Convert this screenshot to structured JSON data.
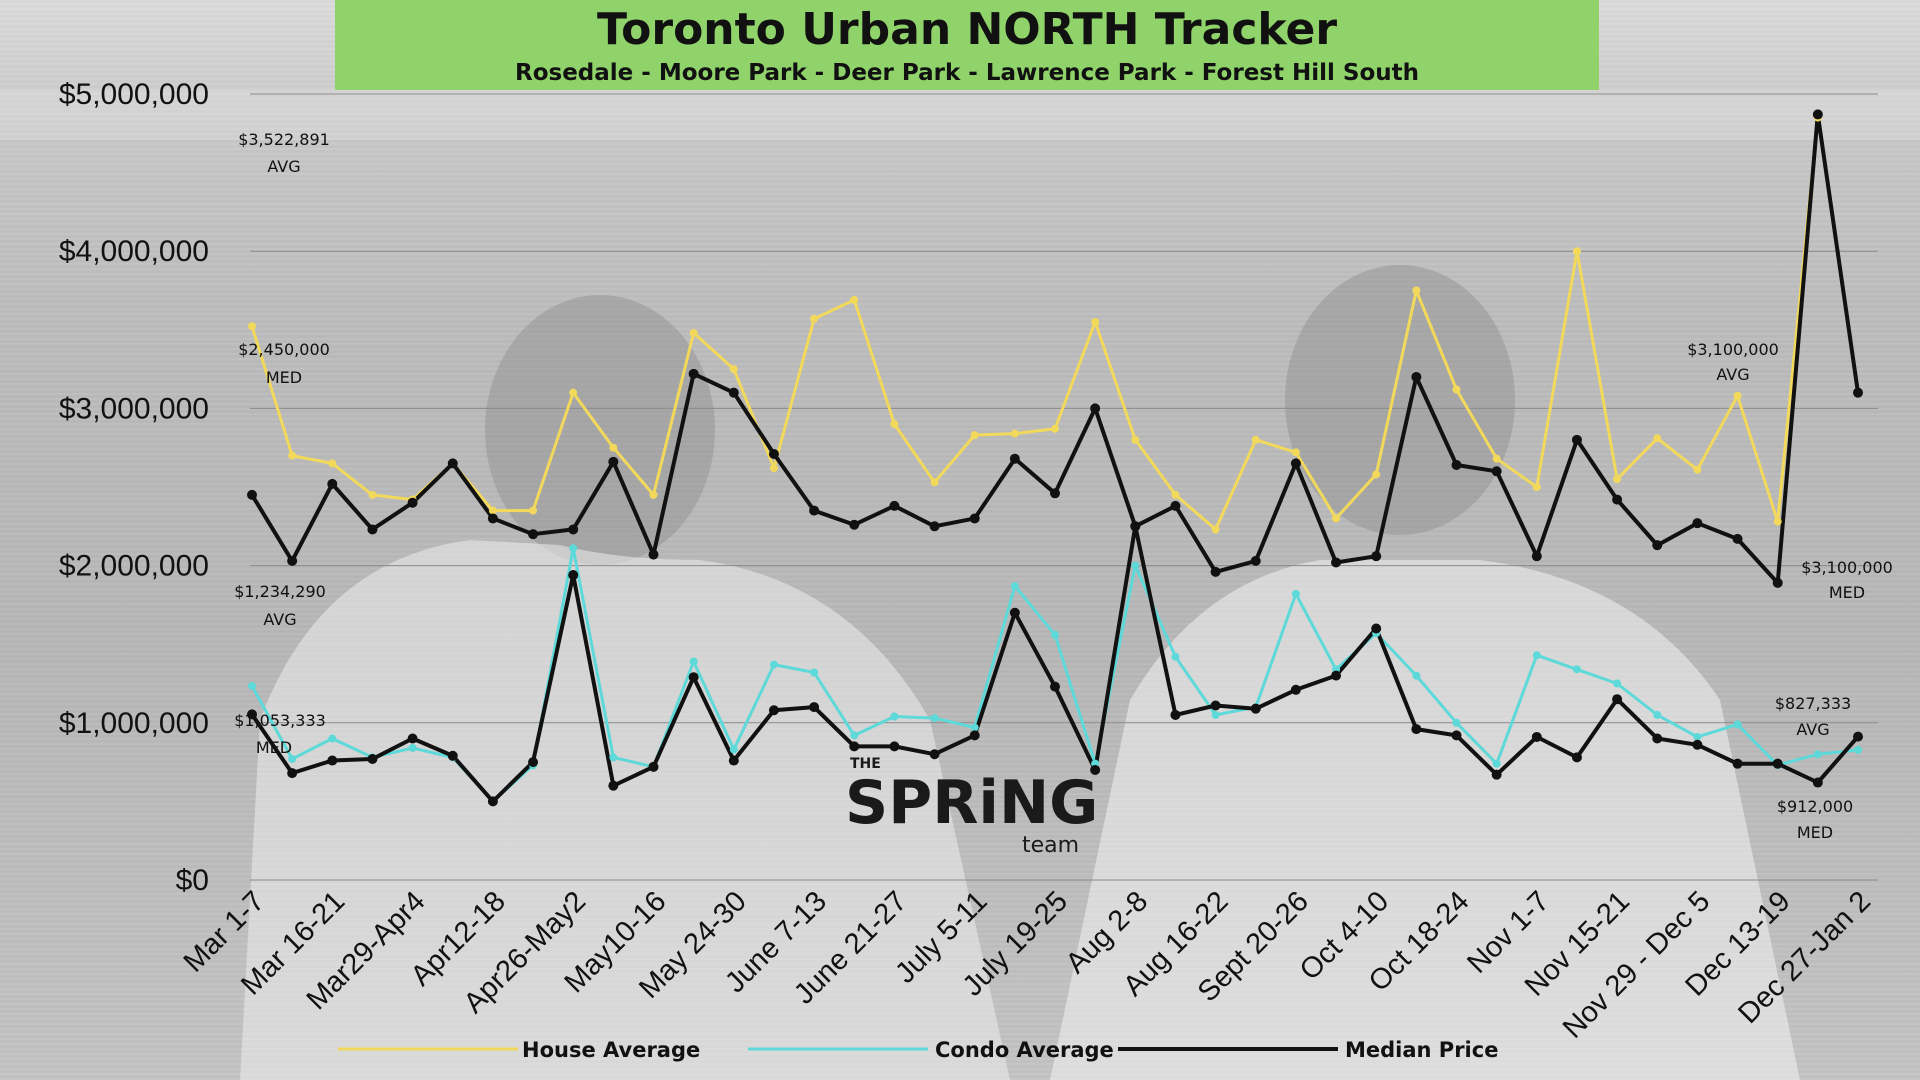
{
  "header": {
    "title": "Toronto Urban NORTH Tracker",
    "subtitle": "Rosedale - Moore Park - Deer Park - Lawrence Park - Forest Hill South"
  },
  "logo": {
    "top": "THE",
    "main": "SPRiNG",
    "bottom": "team"
  },
  "colors": {
    "title_bg": "#8fd36a",
    "house": "#f2d95c",
    "condo": "#5ed9d9",
    "median": "#111111"
  },
  "annotations": [
    {
      "id": "ann-house-first",
      "lines": [
        "$3,522,891",
        "AVG"
      ]
    },
    {
      "id": "ann-median-first",
      "lines": [
        "$2,450,000",
        "MED"
      ]
    },
    {
      "id": "ann-condo-first",
      "lines": [
        "$1,234,290",
        "AVG"
      ]
    },
    {
      "id": "ann-condomed-first",
      "lines": [
        "$1,053,333",
        "MED"
      ]
    },
    {
      "id": "ann-house-last",
      "lines": [
        "$3,100,000",
        "AVG"
      ]
    },
    {
      "id": "ann-median-last",
      "lines": [
        "$3,100,000",
        "MED"
      ]
    },
    {
      "id": "ann-condo-last",
      "lines": [
        "$827,333",
        "AVG"
      ]
    },
    {
      "id": "ann-condomed-last",
      "lines": [
        "$912,000",
        "MED"
      ]
    }
  ],
  "chart_data": {
    "type": "line",
    "title": "Toronto Urban NORTH Tracker",
    "subtitle": "Rosedale - Moore Park - Deer Park - Lawrence Park - Forest Hill South",
    "ylim": [
      0,
      5000000
    ],
    "yticks": [
      "$0",
      "$1,000,000",
      "$2,000,000",
      "$3,000,000",
      "$4,000,000",
      "$5,000,000"
    ],
    "ytick_values": [
      0,
      1000000,
      2000000,
      3000000,
      4000000,
      5000000
    ],
    "grid": true,
    "legend_position": "bottom",
    "x_tick_labels": [
      {
        "index": 0,
        "label": "Mar 1-7"
      },
      {
        "index": 2,
        "label": "Mar 16-21"
      },
      {
        "index": 4,
        "label": "Mar29-Apr4"
      },
      {
        "index": 6,
        "label": "Apr12-18"
      },
      {
        "index": 8,
        "label": "Apr26-May2"
      },
      {
        "index": 10,
        "label": "May10-16"
      },
      {
        "index": 12,
        "label": "May 24-30"
      },
      {
        "index": 14,
        "label": "June 7-13"
      },
      {
        "index": 16,
        "label": "June 21-27"
      },
      {
        "index": 18,
        "label": "July 5-11"
      },
      {
        "index": 20,
        "label": "July 19-25"
      },
      {
        "index": 22,
        "label": "Aug 2-8"
      },
      {
        "index": 24,
        "label": "Aug 16-22"
      },
      {
        "index": 26,
        "label": "Sept 20-26"
      },
      {
        "index": 28,
        "label": "Oct 4-10"
      },
      {
        "index": 30,
        "label": "Oct 18-24"
      },
      {
        "index": 32,
        "label": "Nov 1-7"
      },
      {
        "index": 34,
        "label": "Nov 15-21"
      },
      {
        "index": 36,
        "label": "Nov 29 - Dec 5"
      },
      {
        "index": 38,
        "label": "Dec 13-19"
      },
      {
        "index": 40,
        "label": "Dec 27-Jan 2"
      }
    ],
    "series": [
      {
        "name": "House Average",
        "color": "#f2d95c",
        "values": [
          3522891,
          2700000,
          2650000,
          2450000,
          2420000,
          2650000,
          2350000,
          2350000,
          3100000,
          2750000,
          2450000,
          3480000,
          3250000,
          2620000,
          3570000,
          3690000,
          2900000,
          2530000,
          2830000,
          2840000,
          2870000,
          3550000,
          2800000,
          2450000,
          2230000,
          2800000,
          2720000,
          2300000,
          2580000,
          3750000,
          3120000,
          2680000,
          2500000,
          4000000,
          2550000,
          2810000,
          2610000,
          3080000,
          2280000,
          4850000,
          3100000
        ]
      },
      {
        "name": "Condo Average",
        "color": "#5ed9d9",
        "values": [
          1234290,
          770000,
          900000,
          780000,
          840000,
          780000,
          500000,
          730000,
          2110000,
          780000,
          720000,
          1390000,
          830000,
          1370000,
          1320000,
          920000,
          1040000,
          1030000,
          970000,
          1870000,
          1560000,
          740000,
          2000000,
          1420000,
          1050000,
          1100000,
          1820000,
          1340000,
          1570000,
          1300000,
          1000000,
          740000,
          1430000,
          1340000,
          1250000,
          1050000,
          910000,
          990000,
          730000,
          800000,
          827333
        ]
      },
      {
        "name": "Median Price",
        "color": "#111111",
        "values": [
          2450000,
          2030000,
          2520000,
          2230000,
          2400000,
          2650000,
          2300000,
          2200000,
          2230000,
          2660000,
          2070000,
          3220000,
          3100000,
          2710000,
          2350000,
          2260000,
          2380000,
          2250000,
          2300000,
          2680000,
          2460000,
          3000000,
          2250000,
          2380000,
          1960000,
          2030000,
          2650000,
          2020000,
          2060000,
          3200000,
          2640000,
          2600000,
          2060000,
          2800000,
          2420000,
          2130000,
          2270000,
          2170000,
          1890000,
          4870000,
          3100000
        ]
      },
      {
        "name": "",
        "color": "#111111",
        "values": [
          1053333,
          680000,
          760000,
          770000,
          900000,
          790000,
          500000,
          750000,
          1940000,
          600000,
          720000,
          1290000,
          760000,
          1080000,
          1100000,
          850000,
          850000,
          800000,
          920000,
          1700000,
          1230000,
          700000,
          2250000,
          1050000,
          1110000,
          1090000,
          1210000,
          1300000,
          1600000,
          960000,
          920000,
          670000,
          910000,
          780000,
          1150000,
          900000,
          860000,
          740000,
          740000,
          620000,
          912000
        ]
      }
    ]
  }
}
